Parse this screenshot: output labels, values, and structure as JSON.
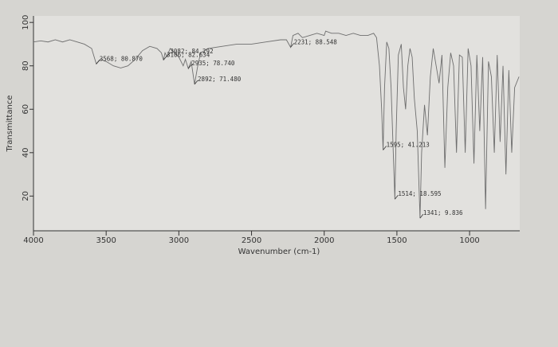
{
  "chart_data": {
    "type": "line",
    "x_label": "Wavenumber (cm-1)",
    "y_label": "Transmittance",
    "color": "#6e6e6e",
    "xlim": [
      4000,
      655
    ],
    "ylim": [
      4,
      103
    ],
    "xticks": [
      4000,
      3500,
      3000,
      2500,
      2000,
      1500,
      1000
    ],
    "yticks": [
      20,
      40,
      60,
      80,
      100
    ],
    "x": [
      4000,
      3950,
      3900,
      3850,
      3800,
      3750,
      3700,
      3650,
      3600,
      3568,
      3540,
      3500,
      3450,
      3400,
      3350,
      3300,
      3250,
      3200,
      3150,
      3120,
      3106,
      3095,
      3082,
      3060,
      3030,
      3000,
      2970,
      2955,
      2935,
      2915,
      2892,
      2870,
      2850,
      2800,
      2700,
      2600,
      2500,
      2400,
      2300,
      2260,
      2231,
      2215,
      2180,
      2150,
      2100,
      2050,
      2000,
      1990,
      1950,
      1900,
      1850,
      1800,
      1750,
      1700,
      1660,
      1640,
      1620,
      1605,
      1595,
      1585,
      1570,
      1555,
      1540,
      1525,
      1514,
      1505,
      1490,
      1470,
      1455,
      1440,
      1425,
      1410,
      1395,
      1380,
      1360,
      1341,
      1330,
      1310,
      1290,
      1270,
      1250,
      1230,
      1210,
      1190,
      1170,
      1150,
      1130,
      1110,
      1090,
      1070,
      1050,
      1030,
      1010,
      990,
      970,
      950,
      930,
      910,
      890,
      870,
      850,
      830,
      810,
      790,
      770,
      750,
      730,
      710,
      690,
      660
    ],
    "values": [
      91,
      91.5,
      91,
      92,
      91,
      92,
      91,
      90,
      88,
      80.87,
      83,
      82,
      80,
      79,
      80,
      83,
      87,
      89,
      88,
      86,
      82.634,
      86,
      84.292,
      88,
      86,
      84,
      80,
      83,
      78.74,
      82,
      71.48,
      80,
      86,
      88,
      89,
      90,
      90,
      91,
      92,
      92,
      88.548,
      94,
      95,
      93,
      94,
      95,
      94,
      96,
      95,
      95,
      94,
      95,
      94,
      94,
      95,
      93,
      80,
      60,
      41.213,
      70,
      91,
      88,
      70,
      40,
      18.595,
      50,
      85,
      90,
      70,
      60,
      80,
      88,
      84,
      65,
      50,
      9.836,
      40,
      62,
      48,
      75,
      88,
      80,
      72,
      85,
      33,
      70,
      86,
      80,
      40,
      85,
      84,
      40,
      88,
      80,
      35,
      85,
      50,
      84,
      14,
      82,
      75,
      40,
      85,
      45,
      80,
      30,
      78,
      40,
      70,
      75
    ],
    "annotations": [
      {
        "x": 3568,
        "y": 80.87,
        "label": "3568; 80.870"
      },
      {
        "x": 3082,
        "y": 84.292,
        "label": "3082; 84.292"
      },
      {
        "x": 3106,
        "y": 82.634,
        "label": "3106; 82.634"
      },
      {
        "x": 2935,
        "y": 78.74,
        "label": "2935; 78.740"
      },
      {
        "x": 2892,
        "y": 71.48,
        "label": "2892; 71.480"
      },
      {
        "x": 2231,
        "y": 88.548,
        "label": "2231; 88.548"
      },
      {
        "x": 1595,
        "y": 41.213,
        "label": "1595; 41.213"
      },
      {
        "x": 1514,
        "y": 18.595,
        "label": "1514; 18.595"
      },
      {
        "x": 1341,
        "y": 9.836,
        "label": "1341; 9.836"
      }
    ]
  }
}
